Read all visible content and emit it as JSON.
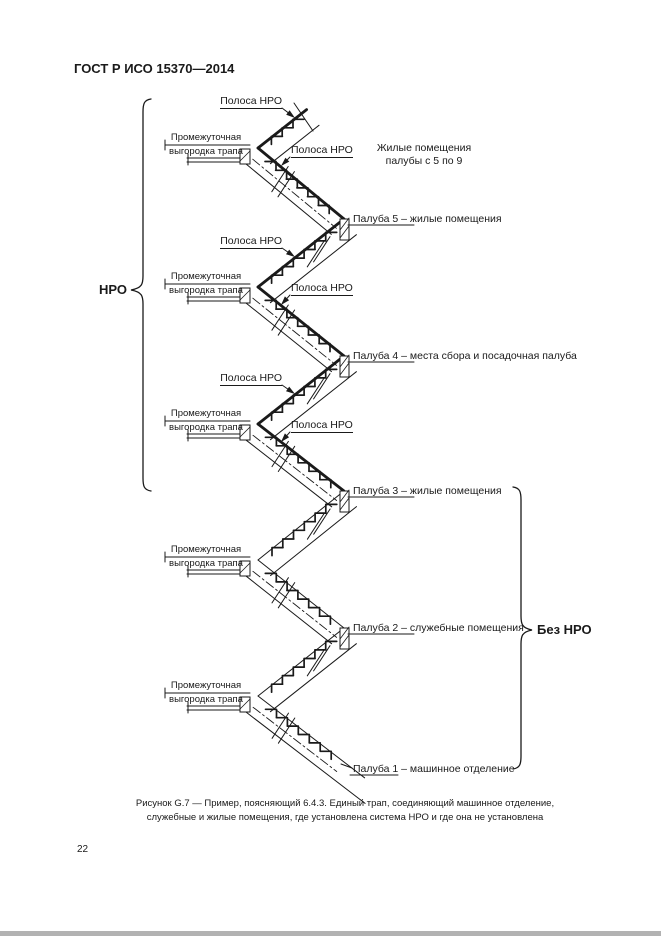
{
  "header": {
    "title": "ГОСТ Р ИСО 15370—2014"
  },
  "diagram": {
    "nro_zone_label": "НРО",
    "no_nro_zone_label": "Без НРО",
    "polosa_label": "Полоса НРО",
    "intermediate_label_line1": "Промежуточная",
    "intermediate_label_line2": "выгородка трапа",
    "note_line1": "Жилые помещения",
    "note_line2": "палубы с 5 по 9",
    "decks": [
      {
        "label": "Палуба 5 – жилые помещения"
      },
      {
        "label": "Палуба 4 – места сбора и посадочная палуба"
      },
      {
        "label": "Палуба 3 – жилые помещения"
      },
      {
        "label": "Палуба 2 – служебные помещения"
      },
      {
        "label": "Палуба 1 – машинное отделение"
      }
    ]
  },
  "caption": {
    "line1": "Рисунок G.7 — Пример, поясняющий 6.4.3. Единый трап, соединяющий машинное отделение,",
    "line2": "служебные и жилые помещения, где установлена система НРО и где она не установлена"
  },
  "footer": {
    "page_number": "22"
  }
}
